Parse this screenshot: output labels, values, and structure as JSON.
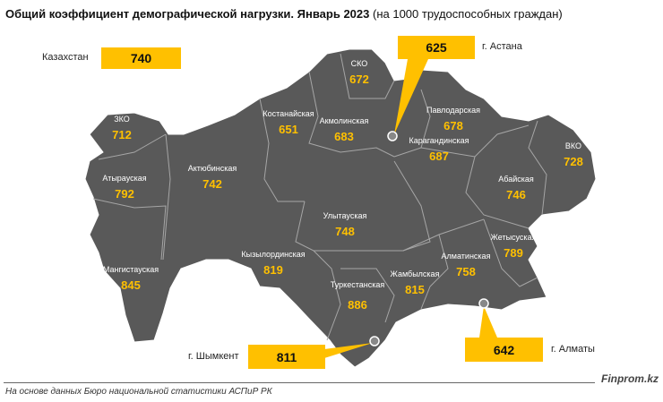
{
  "title": {
    "bold": "Общий коэффициент демографической нагрузки. Январь 2023",
    "normal": "(на 1000 трудоспособных граждан)"
  },
  "national": {
    "label": "Казахстан",
    "value": "740"
  },
  "cities": [
    {
      "label": "г. Астана",
      "value": "625"
    },
    {
      "label": "г. Шымкент",
      "value": "811"
    },
    {
      "label": "г. Алматы",
      "value": "642"
    }
  ],
  "regions": [
    {
      "name": "ЗКО",
      "value": "712"
    },
    {
      "name": "Атырауская",
      "value": "792"
    },
    {
      "name": "Мангистауская",
      "value": "845"
    },
    {
      "name": "Актюбинская",
      "value": "742"
    },
    {
      "name": "Костанайская",
      "value": "651"
    },
    {
      "name": "СКО",
      "value": "672"
    },
    {
      "name": "Акмолинская",
      "value": "683"
    },
    {
      "name": "Павлодарская",
      "value": "678"
    },
    {
      "name": "ВКО",
      "value": "728"
    },
    {
      "name": "Карагандинская",
      "value": "687"
    },
    {
      "name": "Абайская",
      "value": "746"
    },
    {
      "name": "Улытауская",
      "value": "748"
    },
    {
      "name": "Кызылординская",
      "value": "819"
    },
    {
      "name": "Жетысуская",
      "value": "789"
    },
    {
      "name": "Алматинская",
      "value": "758"
    },
    {
      "name": "Жамбылская",
      "value": "815"
    },
    {
      "name": "Туркестанская",
      "value": "886"
    }
  ],
  "colors": {
    "map": "#595959",
    "accent": "#ffc000",
    "border": "#a6a6a6"
  },
  "footer": {
    "source": "На основе данных Бюро национальной статистики АСПиР РК",
    "brand": "Finprom.kz"
  }
}
